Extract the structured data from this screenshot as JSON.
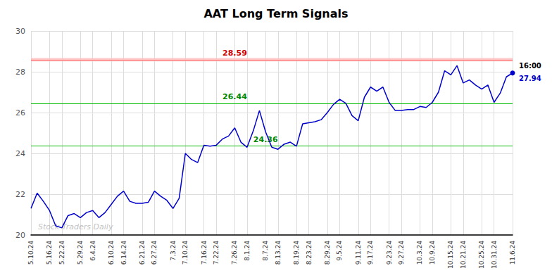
{
  "chart_data": {
    "type": "line",
    "title": "AAT Long Term Signals",
    "categories": [
      "5.10.24",
      null,
      null,
      "5.16.24",
      null,
      "5.22.24",
      null,
      null,
      "5.29.24",
      null,
      "6.4.24",
      null,
      null,
      "6.10.24",
      null,
      "6.14.24",
      null,
      null,
      "6.21.24",
      null,
      "6.27.24",
      null,
      null,
      "7.3.24",
      null,
      "7.10.24",
      null,
      null,
      "7.16.24",
      null,
      "7.22.24",
      null,
      null,
      "7.26.24",
      null,
      "8.1.24",
      null,
      null,
      "8.7.24",
      null,
      "8.13.24",
      null,
      null,
      "8.19.24",
      null,
      "8.23.24",
      null,
      null,
      "8.29.24",
      null,
      "9.5.24",
      null,
      null,
      "9.11.24",
      null,
      "9.17.24",
      null,
      null,
      "9.23.24",
      null,
      "9.27.24",
      null,
      null,
      "10.3.24",
      null,
      "10.9.24",
      null,
      null,
      "10.15.24",
      null,
      "10.21.24",
      null,
      null,
      "10.25.24",
      null,
      "10.31.24",
      null,
      null,
      "11.6.24"
    ],
    "values": [
      21.3,
      22.05,
      21.65,
      21.2,
      20.45,
      20.35,
      20.95,
      21.05,
      20.85,
      21.1,
      21.2,
      20.85,
      21.1,
      21.5,
      21.9,
      22.15,
      21.65,
      21.55,
      21.55,
      21.6,
      22.15,
      21.9,
      21.7,
      21.3,
      21.8,
      24.0,
      23.7,
      23.55,
      24.4,
      24.35,
      24.4,
      24.7,
      24.85,
      25.25,
      24.55,
      24.3,
      25.1,
      26.1,
      25.05,
      24.3,
      24.2,
      24.45,
      24.55,
      24.35,
      25.45,
      25.5,
      25.55,
      25.65,
      26.0,
      26.4,
      26.65,
      26.45,
      25.85,
      25.6,
      26.75,
      27.25,
      27.05,
      27.25,
      26.5,
      26.1,
      26.1,
      26.15,
      26.15,
      26.3,
      26.25,
      26.5,
      27.0,
      28.05,
      27.85,
      28.3,
      27.45,
      27.6,
      27.35,
      27.15,
      27.35,
      26.5,
      26.95,
      27.75,
      27.94
    ],
    "color": "#0000cc",
    "reference_lines": [
      {
        "value": 28.59,
        "color": "#ff6666",
        "band_color": "#ffbbbb",
        "label_color": "#cc0000"
      },
      {
        "value": 26.44,
        "color": "#00bb00",
        "label_color": "#008800"
      },
      {
        "value": 24.36,
        "color": "#00bb00",
        "label_color": "#008800"
      }
    ],
    "final_label": {
      "time": "16:00",
      "value": 27.94,
      "color": "#0000cc"
    },
    "watermark": "Stock Traders Daily",
    "ylim": [
      20,
      30
    ],
    "yticks": [
      20,
      22,
      24,
      26,
      28,
      30
    ],
    "grid": true
  }
}
